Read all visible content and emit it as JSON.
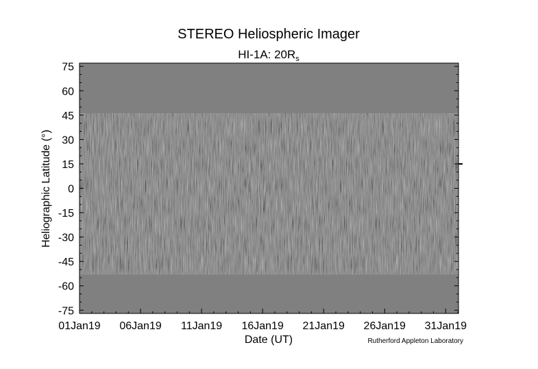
{
  "chart_data": {
    "type": "heatmap",
    "title": "STEREO Heliospheric Imager",
    "subtitle_main": "HI-1A: 20R",
    "subtitle_sub": "s",
    "xlabel": "Date (UT)",
    "ylabel": "Heliographic Latitude (°)",
    "credit": "Rutherford Appleton Laboratory",
    "ylim": [
      -77,
      77
    ],
    "y_ticks": [
      75,
      60,
      45,
      30,
      15,
      0,
      -15,
      -30,
      -45,
      -60,
      -75
    ],
    "x_ticks": [
      "01Jan19",
      "06Jan19",
      "11Jan19",
      "16Jan19",
      "21Jan19",
      "26Jan19",
      "31Jan19"
    ],
    "x_tick_days": [
      1,
      6,
      11,
      16,
      21,
      26,
      31
    ],
    "xlim_days": [
      1,
      32.05
    ],
    "data_band": {
      "top_start": 46,
      "top_end": 43,
      "bottom_start": -51,
      "bottom_end": -53
    },
    "right_marker_latitude": 15,
    "colors": {
      "background": "#808080",
      "frame": "#000000"
    }
  }
}
